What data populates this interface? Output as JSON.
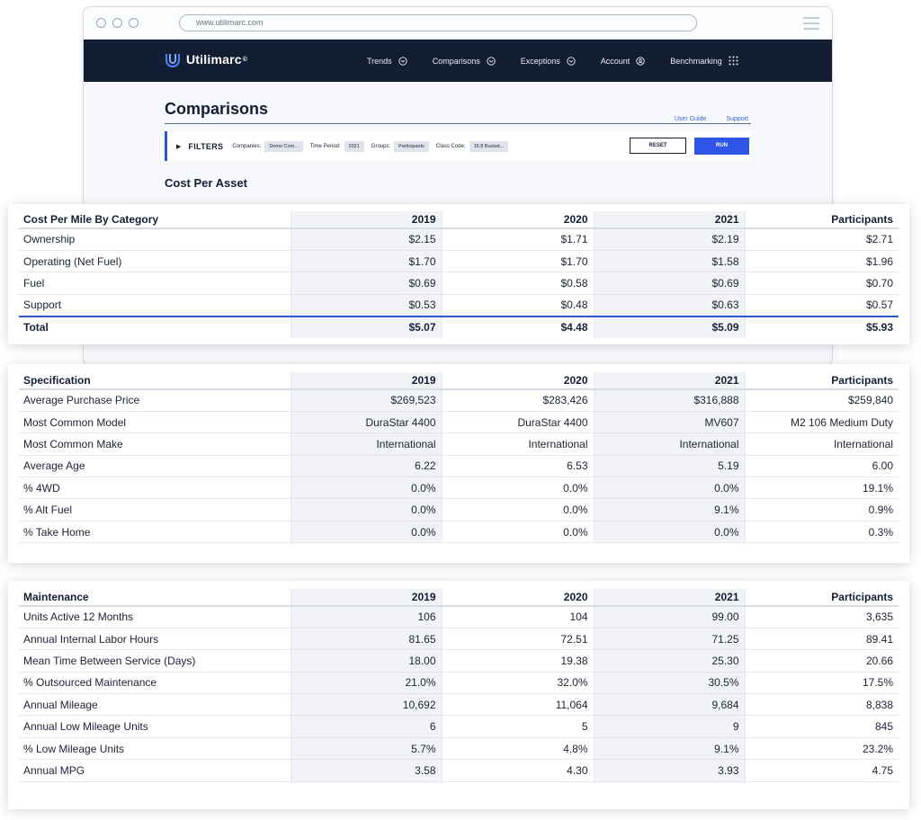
{
  "browser": {
    "url": "www.utilimarc.com"
  },
  "brand": {
    "name": "Utilimarc",
    "mark": "©"
  },
  "nav": [
    {
      "label": "Trends",
      "icon": "chevron-circle-icon"
    },
    {
      "label": "Comparisons",
      "icon": "chevron-circle-icon"
    },
    {
      "label": "Exceptions",
      "icon": "chevron-circle-icon"
    },
    {
      "label": "Account",
      "icon": "user-circle-icon"
    },
    {
      "label": "Benchmarking",
      "icon": "grid-dots-icon"
    }
  ],
  "page": {
    "title": "Comparisons",
    "links": {
      "user_guide": "User Guide",
      "support": "Support"
    },
    "section_title": "Cost Per Asset"
  },
  "filters": {
    "label": "FILTERS",
    "companies_label": "Companies:",
    "companies_value": "Demo Com...",
    "period_label": "Time Period:",
    "period_value": "2021",
    "groups_label": "Groups:",
    "groups_value": "Participants",
    "class_label": "Class Code:",
    "class_value": "16.8 Bucket...",
    "reset": "RESET",
    "run": "RUN"
  },
  "tables": {
    "cost": {
      "headers": [
        "Cost Per Mile By Category",
        "2019",
        "2020",
        "2021",
        "Participants"
      ],
      "rows": [
        [
          "Ownership",
          "$2.15",
          "$1.71",
          "$2.19",
          "$2.71"
        ],
        [
          "Operating (Net Fuel)",
          "$1.70",
          "$1.70",
          "$1.58",
          "$1.96"
        ],
        [
          "Fuel",
          "$0.69",
          "$0.58",
          "$0.69",
          "$0.70"
        ],
        [
          "Support",
          "$0.53",
          "$0.48",
          "$0.63",
          "$0.57"
        ]
      ],
      "total": [
        "Total",
        "$5.07",
        "$4.48",
        "$5.09",
        "$5.93"
      ]
    },
    "spec": {
      "headers": [
        "Specification",
        "2019",
        "2020",
        "2021",
        "Participants"
      ],
      "rows": [
        [
          "Average Purchase Price",
          "$269,523",
          "$283,426",
          "$316,888",
          "$259,840"
        ],
        [
          "Most Common Model",
          "DuraStar 4400",
          "DuraStar 4400",
          "MV607",
          "M2 106 Medium Duty"
        ],
        [
          "Most Common Make",
          "International",
          "International",
          "International",
          "International"
        ],
        [
          "Average Age",
          "6.22",
          "6.53",
          "5.19",
          "6.00"
        ],
        [
          "% 4WD",
          "0.0%",
          "0.0%",
          "0.0%",
          "19.1%"
        ],
        [
          "% Alt Fuel",
          "0.0%",
          "0.0%",
          "9.1%",
          "0.9%"
        ],
        [
          "% Take Home",
          "0.0%",
          "0.0%",
          "0.0%",
          "0.3%"
        ]
      ]
    },
    "maint": {
      "headers": [
        "Maintenance",
        "2019",
        "2020",
        "2021",
        "Participants"
      ],
      "rows": [
        [
          "Units Active 12 Months",
          "106",
          "104",
          "99.00",
          "3,635"
        ],
        [
          "Annual Internal Labor Hours",
          "81.65",
          "72.51",
          "71.25",
          "89.41"
        ],
        [
          "Mean Time Between Service (Days)",
          "18.00",
          "19.38",
          "25.30",
          "20.66"
        ],
        [
          "% Outsourced Maintenance",
          "21.0%",
          "32.0%",
          "30.5%",
          "17.5%"
        ],
        [
          "Annual Mileage",
          "10,692",
          "11,064",
          "9,684",
          "8,838"
        ],
        [
          "Annual Low Mileage Units",
          "6",
          "5",
          "9",
          "845"
        ],
        [
          "% Low Mileage Units",
          "5.7%",
          "4.8%",
          "9.1%",
          "23.2%"
        ],
        [
          "Annual MPG",
          "3.58",
          "4.30",
          "3.93",
          "4.75"
        ]
      ]
    }
  },
  "colors": {
    "navbar": "#141e33",
    "accent": "#2f55e6",
    "shade": "#f1f3f7"
  }
}
